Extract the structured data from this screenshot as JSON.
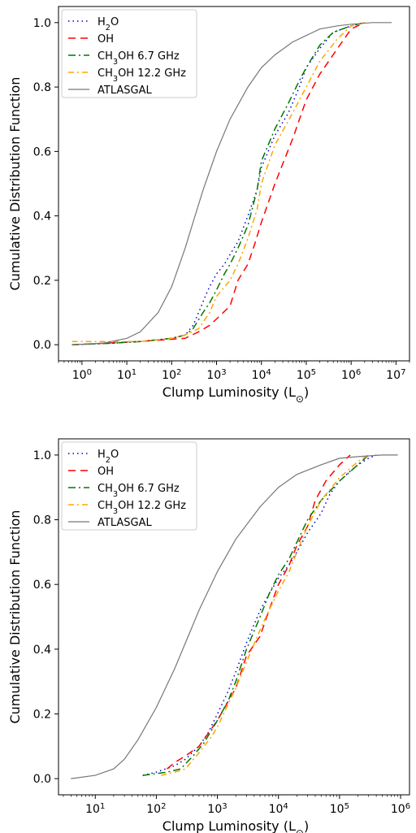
{
  "chart_data": [
    {
      "type": "line",
      "xscale": "log",
      "xlim": [
        0.3,
        20000000
      ],
      "ylim": [
        -0.05,
        1.05
      ],
      "xlabel": "Clump Luminosity (L⊙)",
      "ylabel": "Cumulative Distribution Function",
      "x_ticks": [
        "10⁰",
        "10¹",
        "10²",
        "10³",
        "10⁴",
        "10⁵",
        "10⁶",
        "10⁷"
      ],
      "x_tick_values": [
        1,
        10,
        100,
        1000,
        10000,
        100000,
        1000000,
        10000000
      ],
      "y_ticks": [
        "0.0",
        "0.2",
        "0.4",
        "0.6",
        "0.8",
        "1.0"
      ],
      "y_tick_values": [
        0,
        0.2,
        0.4,
        0.6,
        0.8,
        1.0
      ],
      "legend_position": "top-left",
      "series": [
        {
          "name": "H₂O",
          "color": "#0000cc",
          "dash": "1.5,4",
          "x": [
            0.6,
            5,
            20,
            100,
            200,
            300,
            400,
            600,
            700,
            1000,
            1500,
            2000,
            3000,
            5000,
            8000,
            10000,
            20000,
            40000,
            70000,
            100000,
            200000,
            400000,
            1000000,
            2000000
          ],
          "y": [
            0.0,
            0.005,
            0.01,
            0.02,
            0.03,
            0.06,
            0.1,
            0.16,
            0.18,
            0.22,
            0.25,
            0.28,
            0.32,
            0.4,
            0.48,
            0.55,
            0.65,
            0.72,
            0.8,
            0.86,
            0.92,
            0.97,
            0.99,
            1.0
          ]
        },
        {
          "name": "OH",
          "color": "#ff0000",
          "dash": "9,6",
          "x": [
            0.6,
            20,
            200,
            400,
            700,
            1000,
            2000,
            3000,
            5000,
            7000,
            10000,
            20000,
            50000,
            100000,
            200000,
            500000,
            1000000,
            2000000
          ],
          "y": [
            0.0,
            0.01,
            0.02,
            0.04,
            0.06,
            0.08,
            0.12,
            0.2,
            0.25,
            0.31,
            0.38,
            0.5,
            0.64,
            0.76,
            0.84,
            0.92,
            0.98,
            1.0
          ]
        },
        {
          "name": "CH₃OH 6.7 GHz",
          "color": "#007700",
          "dash": "9,4,2,4",
          "x": [
            0.6,
            5,
            20,
            100,
            200,
            300,
            500,
            700,
            1000,
            1500,
            2000,
            3000,
            5000,
            8000,
            10000,
            20000,
            40000,
            70000,
            100000,
            200000,
            400000,
            1000000,
            2000000
          ],
          "y": [
            0.0,
            0.005,
            0.01,
            0.02,
            0.03,
            0.05,
            0.1,
            0.13,
            0.17,
            0.22,
            0.25,
            0.3,
            0.37,
            0.48,
            0.57,
            0.67,
            0.75,
            0.82,
            0.86,
            0.93,
            0.97,
            0.99,
            1.0
          ]
        },
        {
          "name": "CH₃OH 12.2 GHz",
          "color": "#ffa500",
          "dash": "7,4,2,4",
          "x": [
            0.6,
            5,
            20,
            100,
            200,
            400,
            700,
            1000,
            2000,
            3000,
            5000,
            8000,
            10000,
            20000,
            50000,
            100000,
            200000,
            500000,
            1000000,
            2000000
          ],
          "y": [
            0.01,
            0.01,
            0.01,
            0.02,
            0.03,
            0.05,
            0.1,
            0.15,
            0.2,
            0.25,
            0.33,
            0.42,
            0.5,
            0.62,
            0.72,
            0.8,
            0.88,
            0.95,
            0.99,
            1.0
          ]
        },
        {
          "name": "ATLASGAL",
          "color": "#777777",
          "dash": "",
          "x": [
            0.6,
            3,
            10,
            20,
            50,
            100,
            200,
            300,
            500,
            1000,
            2000,
            5000,
            10000,
            20000,
            50000,
            100000,
            200000,
            500000,
            1000000,
            3000000,
            8000000
          ],
          "y": [
            0.0,
            0.005,
            0.02,
            0.04,
            0.1,
            0.18,
            0.3,
            0.38,
            0.48,
            0.6,
            0.7,
            0.8,
            0.86,
            0.9,
            0.94,
            0.96,
            0.98,
            0.99,
            0.995,
            1.0,
            1.0
          ]
        }
      ]
    },
    {
      "type": "line",
      "xscale": "log",
      "xlim": [
        2.5,
        1400000
      ],
      "ylim": [
        -0.05,
        1.05
      ],
      "xlabel": "Clump Luminosity (L⊙)",
      "ylabel": "Cumulative Distribution Function",
      "x_ticks": [
        "10¹",
        "10²",
        "10³",
        "10⁴",
        "10⁵",
        "10⁶"
      ],
      "x_tick_values": [
        10,
        100,
        1000,
        10000,
        100000,
        1000000
      ],
      "y_ticks": [
        "0.0",
        "0.2",
        "0.4",
        "0.6",
        "0.8",
        "1.0"
      ],
      "y_tick_values": [
        0,
        0.2,
        0.4,
        0.6,
        0.8,
        1.0
      ],
      "legend_position": "top-left",
      "series": [
        {
          "name": "H₂O",
          "color": "#0000cc",
          "dash": "1.5,4",
          "x": [
            60,
            100,
            200,
            300,
            500,
            700,
            1000,
            1500,
            2000,
            3000,
            5000,
            7000,
            10000,
            15000,
            20000,
            30000,
            50000,
            70000,
            100000,
            150000,
            200000,
            300000,
            400000
          ],
          "y": [
            0.01,
            0.02,
            0.04,
            0.06,
            0.1,
            0.14,
            0.2,
            0.27,
            0.33,
            0.42,
            0.52,
            0.57,
            0.62,
            0.66,
            0.7,
            0.76,
            0.82,
            0.88,
            0.92,
            0.95,
            0.97,
            0.99,
            1.0
          ]
        },
        {
          "name": "OH",
          "color": "#ff0000",
          "dash": "9,6",
          "x": [
            150,
            200,
            300,
            500,
            1000,
            2000,
            3000,
            5000,
            7000,
            10000,
            15000,
            20000,
            30000,
            40000,
            60000,
            100000,
            150000
          ],
          "y": [
            0.03,
            0.05,
            0.07,
            0.1,
            0.18,
            0.28,
            0.38,
            0.44,
            0.52,
            0.6,
            0.66,
            0.72,
            0.78,
            0.86,
            0.92,
            0.97,
            1.0
          ]
        },
        {
          "name": "CH₃OH 6.7 GHz",
          "color": "#007700",
          "dash": "9,4,2,4",
          "x": [
            60,
            150,
            250,
            400,
            600,
            1000,
            1500,
            2000,
            3000,
            5000,
            7000,
            10000,
            15000,
            20000,
            30000,
            50000,
            100000,
            200000,
            300000
          ],
          "y": [
            0.01,
            0.02,
            0.03,
            0.07,
            0.11,
            0.18,
            0.24,
            0.3,
            0.4,
            0.5,
            0.57,
            0.63,
            0.68,
            0.73,
            0.8,
            0.86,
            0.92,
            0.97,
            1.0
          ]
        },
        {
          "name": "CH₃OH 12.2 GHz",
          "color": "#ffa500",
          "dash": "7,4,2,4",
          "x": [
            120,
            200,
            300,
            500,
            800,
            1000,
            2000,
            3000,
            5000,
            7000,
            10000,
            15000,
            20000,
            30000,
            50000,
            100000,
            200000,
            300000
          ],
          "y": [
            0.01,
            0.02,
            0.03,
            0.08,
            0.13,
            0.16,
            0.28,
            0.36,
            0.46,
            0.52,
            0.58,
            0.64,
            0.7,
            0.78,
            0.86,
            0.93,
            0.98,
            1.0
          ]
        },
        {
          "name": "ATLASGAL",
          "color": "#777777",
          "dash": "",
          "x": [
            4,
            10,
            20,
            30,
            50,
            100,
            200,
            300,
            500,
            1000,
            2000,
            5000,
            10000,
            20000,
            50000,
            100000,
            200000,
            500000,
            900000
          ],
          "y": [
            0.0,
            0.01,
            0.03,
            0.06,
            0.12,
            0.22,
            0.34,
            0.42,
            0.52,
            0.64,
            0.74,
            0.84,
            0.9,
            0.94,
            0.97,
            0.99,
            0.995,
            1.0,
            1.0
          ]
        }
      ]
    }
  ]
}
